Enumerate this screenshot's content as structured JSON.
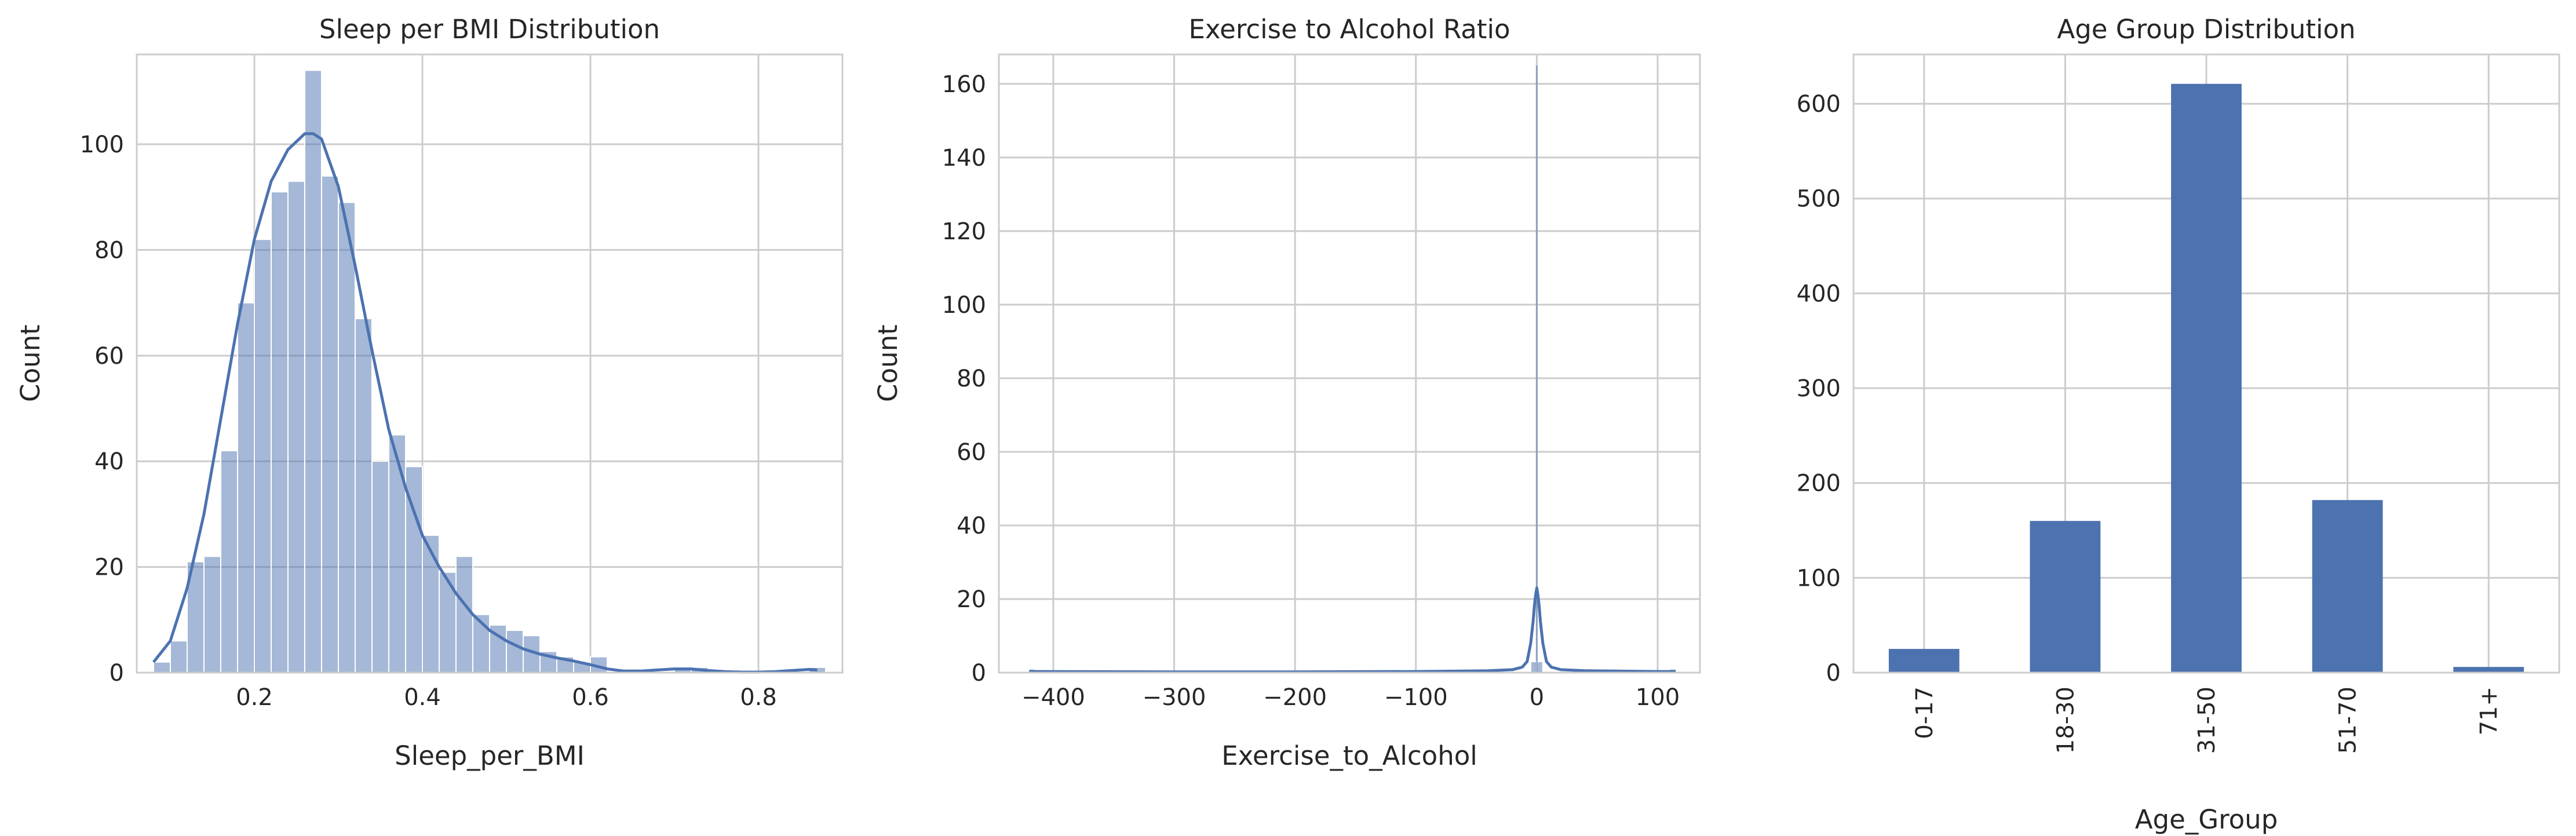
{
  "chart_data": [
    {
      "type": "histogram",
      "title": "Sleep per BMI Distribution",
      "xlabel": "Sleep_per_BMI",
      "ylabel": "Count",
      "xlim": [
        0.06,
        0.9
      ],
      "ylim": [
        0,
        117
      ],
      "xticks": [
        0.2,
        0.4,
        0.6,
        0.8
      ],
      "xtick_labels": [
        "0.2",
        "0.4",
        "0.6",
        "0.8"
      ],
      "yticks": [
        0,
        20,
        40,
        60,
        80,
        100
      ],
      "ytick_labels": [
        "0",
        "20",
        "40",
        "60",
        "80",
        "100"
      ],
      "grid": true,
      "color": "#4c72b0",
      "bin_width": 0.02,
      "bins": [
        {
          "x0": 0.08,
          "count": 2
        },
        {
          "x0": 0.1,
          "count": 6
        },
        {
          "x0": 0.12,
          "count": 21
        },
        {
          "x0": 0.14,
          "count": 22
        },
        {
          "x0": 0.16,
          "count": 42
        },
        {
          "x0": 0.18,
          "count": 70
        },
        {
          "x0": 0.2,
          "count": 82
        },
        {
          "x0": 0.22,
          "count": 91
        },
        {
          "x0": 0.24,
          "count": 93
        },
        {
          "x0": 0.26,
          "count": 114
        },
        {
          "x0": 0.28,
          "count": 94
        },
        {
          "x0": 0.3,
          "count": 89
        },
        {
          "x0": 0.32,
          "count": 67
        },
        {
          "x0": 0.34,
          "count": 40
        },
        {
          "x0": 0.36,
          "count": 45
        },
        {
          "x0": 0.38,
          "count": 39
        },
        {
          "x0": 0.4,
          "count": 26
        },
        {
          "x0": 0.42,
          "count": 19
        },
        {
          "x0": 0.44,
          "count": 22
        },
        {
          "x0": 0.46,
          "count": 11
        },
        {
          "x0": 0.48,
          "count": 9
        },
        {
          "x0": 0.5,
          "count": 8
        },
        {
          "x0": 0.52,
          "count": 7
        },
        {
          "x0": 0.54,
          "count": 4
        },
        {
          "x0": 0.56,
          "count": 3
        },
        {
          "x0": 0.58,
          "count": 2
        },
        {
          "x0": 0.6,
          "count": 3
        },
        {
          "x0": 0.62,
          "count": 0
        },
        {
          "x0": 0.64,
          "count": 0
        },
        {
          "x0": 0.66,
          "count": 0
        },
        {
          "x0": 0.68,
          "count": 0
        },
        {
          "x0": 0.7,
          "count": 1
        },
        {
          "x0": 0.72,
          "count": 1
        },
        {
          "x0": 0.74,
          "count": 0
        },
        {
          "x0": 0.76,
          "count": 0
        },
        {
          "x0": 0.78,
          "count": 0
        },
        {
          "x0": 0.8,
          "count": 0
        },
        {
          "x0": 0.82,
          "count": 0
        },
        {
          "x0": 0.84,
          "count": 0
        },
        {
          "x0": 0.86,
          "count": 1
        }
      ],
      "kde": {
        "x": [
          0.08,
          0.1,
          0.12,
          0.14,
          0.16,
          0.18,
          0.2,
          0.22,
          0.24,
          0.26,
          0.27,
          0.28,
          0.3,
          0.32,
          0.34,
          0.36,
          0.38,
          0.4,
          0.42,
          0.44,
          0.46,
          0.48,
          0.5,
          0.52,
          0.54,
          0.56,
          0.58,
          0.6,
          0.62,
          0.64,
          0.66,
          0.68,
          0.7,
          0.72,
          0.74,
          0.76,
          0.78,
          0.8,
          0.82,
          0.84,
          0.86,
          0.87
        ],
        "y": [
          2,
          6,
          16,
          30,
          48,
          66,
          82,
          93,
          99,
          102,
          102,
          101,
          92,
          77,
          61,
          46,
          35,
          26,
          20,
          15,
          11,
          8,
          6,
          4.5,
          3.5,
          2.8,
          2.2,
          1.5,
          0.7,
          0.3,
          0.3,
          0.5,
          0.7,
          0.7,
          0.4,
          0.2,
          0.1,
          0.1,
          0.2,
          0.4,
          0.6,
          0.5
        ]
      }
    },
    {
      "type": "histogram",
      "title": "Exercise to Alcohol Ratio",
      "xlabel": "Exercise_to_Alcohol",
      "ylabel": "Count",
      "xlim": [
        -445,
        135
      ],
      "ylim": [
        0,
        168
      ],
      "xticks": [
        -400,
        -300,
        -200,
        -100,
        0,
        100
      ],
      "xtick_labels": [
        "−400",
        "−300",
        "−200",
        "−100",
        "0",
        "100"
      ],
      "yticks": [
        0,
        20,
        40,
        60,
        80,
        100,
        120,
        140,
        160
      ],
      "ytick_labels": [
        "0",
        "20",
        "40",
        "60",
        "80",
        "100",
        "120",
        "140",
        "160"
      ],
      "grid": true,
      "color": "#4c72b0",
      "bin_width": 5,
      "bins": [
        {
          "x0": -420,
          "count": 1
        },
        {
          "x0": -5,
          "count": 3
        },
        {
          "x0": 0,
          "count": 3
        },
        {
          "x0": 110,
          "count": 1
        }
      ],
      "spike": {
        "x": 0,
        "count": 165
      },
      "kde": {
        "x": [
          -420,
          -300,
          -200,
          -100,
          -40,
          -20,
          -12,
          -8,
          -5,
          -3,
          -2,
          -1,
          0,
          1,
          2,
          3,
          5,
          8,
          12,
          20,
          40,
          100,
          115
        ],
        "y": [
          0.3,
          0.2,
          0.2,
          0.3,
          0.5,
          0.8,
          1.5,
          3,
          8,
          14,
          18,
          21,
          23,
          21,
          18,
          14,
          8,
          3,
          1.5,
          0.8,
          0.5,
          0.3,
          0.3
        ]
      }
    },
    {
      "type": "bar",
      "title": "Age Group Distribution",
      "xlabel": "Age_Group",
      "ylabel": "",
      "ylim": [
        0,
        652
      ],
      "categories": [
        "0-17",
        "18-30",
        "31-50",
        "51-70",
        "71+"
      ],
      "values": [
        25,
        160,
        621,
        182,
        6
      ],
      "yticks": [
        0,
        100,
        200,
        300,
        400,
        500,
        600
      ],
      "ytick_labels": [
        "0",
        "100",
        "200",
        "300",
        "400",
        "500",
        "600"
      ],
      "grid": true,
      "color": "#4c72b0"
    }
  ]
}
